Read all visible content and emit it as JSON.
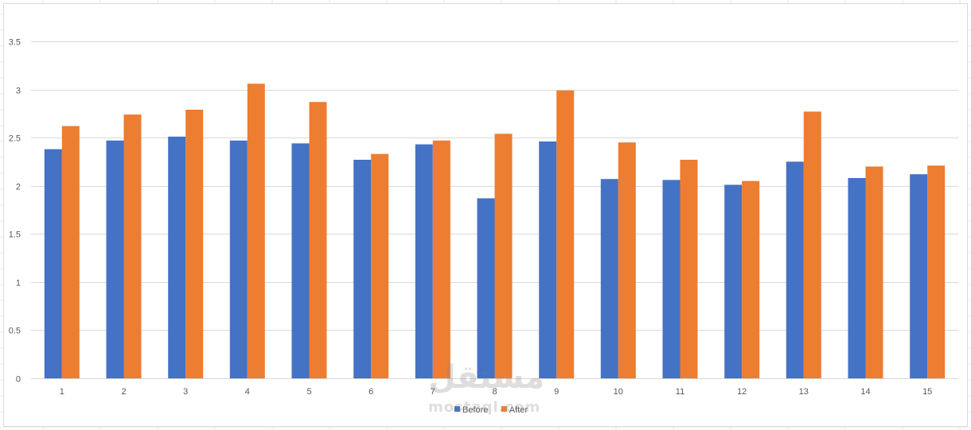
{
  "chart_data": {
    "type": "bar",
    "categories": [
      "1",
      "2",
      "3",
      "4",
      "5",
      "6",
      "7",
      "8",
      "9",
      "10",
      "11",
      "12",
      "13",
      "14",
      "15"
    ],
    "series": [
      {
        "name": "Before",
        "color": "#4472C4",
        "values": [
          2.38,
          2.47,
          2.51,
          2.47,
          2.44,
          2.27,
          2.43,
          1.87,
          2.46,
          2.07,
          2.06,
          2.01,
          2.25,
          2.08,
          2.12
        ]
      },
      {
        "name": "After",
        "color": "#ED7D31",
        "values": [
          2.62,
          2.74,
          2.79,
          3.06,
          2.87,
          2.33,
          2.47,
          2.54,
          2.99,
          2.45,
          2.27,
          2.05,
          2.77,
          2.2,
          2.21
        ]
      }
    ],
    "yticks": [
      "0",
      "0.5",
      "1",
      "1.5",
      "2",
      "2.5",
      "3",
      "3.5"
    ],
    "ylim": [
      0,
      3.5
    ],
    "grid": true,
    "legend": "bottom-center",
    "title": "",
    "xlabel": "",
    "ylabel": ""
  },
  "watermark": {
    "arabic": "مستقل",
    "latin": "mostaql.com"
  }
}
